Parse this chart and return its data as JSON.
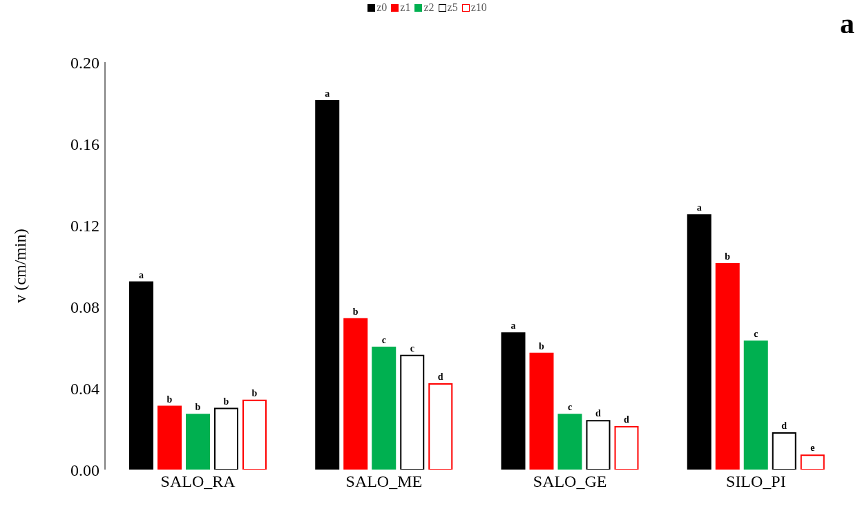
{
  "chart_data": {
    "type": "bar",
    "ylabel": "v (cm/min)",
    "categories": [
      "SALO_RA",
      "SALO_ME",
      "SALO_GE",
      "SILO_PI"
    ],
    "series": [
      {
        "name": "z0",
        "color": "#000000",
        "values": [
          0.092,
          0.181,
          0.067,
          0.125
        ],
        "value_labels": [
          "a",
          "a",
          "a",
          "a"
        ]
      },
      {
        "name": "z1",
        "color": "#ff0000",
        "values": [
          0.031,
          0.074,
          0.057,
          0.101
        ],
        "value_labels": [
          "b",
          "b",
          "b",
          "b"
        ]
      },
      {
        "name": "z2",
        "color": "#00b050",
        "values": [
          0.027,
          0.06,
          0.027,
          0.063
        ],
        "value_labels": [
          "b",
          "c",
          "c",
          "c"
        ]
      },
      {
        "name": "z5",
        "color": "#000000",
        "line_style": "solid",
        "values": [
          0.03,
          0.056,
          0.024,
          0.018
        ],
        "value_labels": [
          "b",
          "c",
          "d",
          "d"
        ]
      },
      {
        "name": "z10",
        "color": "#ff0000",
        "line_style": "solid",
        "values": [
          0.034,
          0.042,
          0.021,
          0.007
        ],
        "value_labels": [
          "b",
          "d",
          "d",
          "e"
        ]
      }
    ],
    "ylim": [
      0,
      0.2
    ],
    "yticks": [
      {
        "value": 0,
        "label": "0.00"
      },
      {
        "value": 0.04,
        "label": "0.04"
      },
      {
        "value": 0.08,
        "label": "0.08"
      },
      {
        "value": 0.12,
        "label": "0.12"
      },
      {
        "value": 0.16,
        "label": "0.16"
      },
      {
        "value": 0.2,
        "label": "0.20"
      }
    ],
    "grid": false,
    "legend": "top",
    "annotations": [
      "a"
    ]
  }
}
